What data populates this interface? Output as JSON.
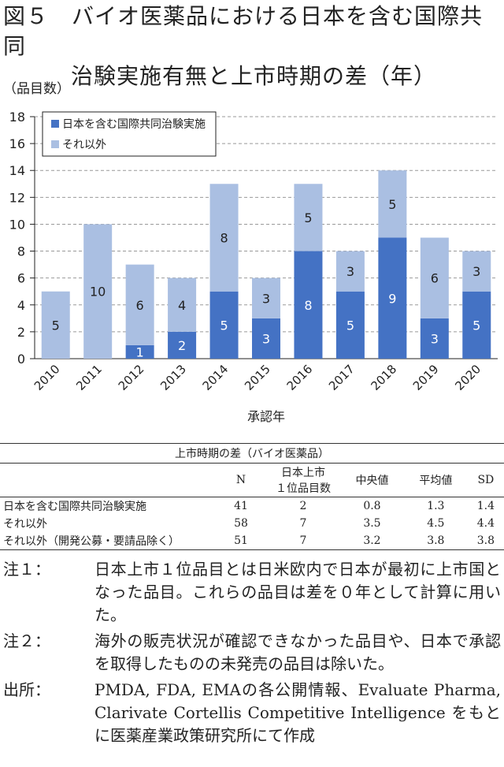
{
  "title": {
    "prefix": "図５",
    "line1": "バイオ医薬品における日本を含む国際共同",
    "line2": "治験実施有無と上市時期の差（年）"
  },
  "chart_data": {
    "type": "bar",
    "stacked": true,
    "ylabel": "（品目数）",
    "xlabel": "承認年",
    "ylim": [
      0,
      18
    ],
    "yticks": [
      0,
      2,
      4,
      6,
      8,
      10,
      12,
      14,
      16,
      18
    ],
    "grid": true,
    "legend_position": "top-left",
    "categories": [
      "2010",
      "2011",
      "2012",
      "2013",
      "2014",
      "2015",
      "2016",
      "2017",
      "2018",
      "2019",
      "2020"
    ],
    "series": [
      {
        "name": "日本を含む国際共同治験実施",
        "color": "#4472c4",
        "values": [
          0,
          0,
          1,
          2,
          5,
          3,
          8,
          5,
          9,
          3,
          5
        ]
      },
      {
        "name": "それ以外",
        "color": "#aabfe2",
        "values": [
          5,
          10,
          6,
          4,
          8,
          3,
          5,
          3,
          5,
          6,
          3
        ]
      }
    ]
  },
  "table": {
    "caption": "上市時期の差（バイオ医薬品）",
    "headers": [
      "",
      "N",
      "日本上市\n１位品目数",
      "中央値",
      "平均値",
      "SD"
    ],
    "header_top": "日本上市",
    "header_bottom": "１位品目数",
    "rows": [
      [
        "日本を含む国際共同治験実施",
        "41",
        "2",
        "0.8",
        "1.3",
        "1.4"
      ],
      [
        "それ以外",
        "58",
        "7",
        "3.5",
        "4.5",
        "4.4"
      ],
      [
        "それ以外（開発公募・要請品除く）",
        "51",
        "7",
        "3.2",
        "3.8",
        "3.8"
      ]
    ]
  },
  "notes": [
    {
      "key": "注１：",
      "text": "日本上市１位品目とは日米欧内で日本が最初に上市国となった品目。これらの品目は差を０年として計算に用いた。"
    },
    {
      "key": "注２：",
      "text": "海外の販売状況が確認できなかった品目や、日本で承認を取得したものの未発売の品目は除いた。"
    },
    {
      "key": "出所：",
      "text": "PMDA, FDA, EMAの各公開情報、Evaluate Pharma, Clarivate Cortellis Competitive Intelligence をもとに医薬産業政策研究所にて作成"
    }
  ]
}
